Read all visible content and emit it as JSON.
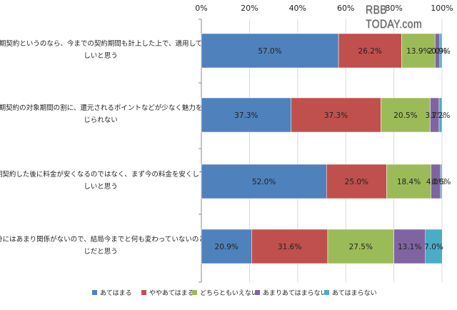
{
  "watermark": "RBB TODAY.com",
  "colors": {
    "series": [
      "#4f81bd",
      "#c0504d",
      "#9bbb59",
      "#8064a2",
      "#4bacc6"
    ],
    "grid": "#d9d9d9",
    "axis": "#888888",
    "text": "#222222"
  },
  "chart_data": {
    "type": "bar",
    "orientation": "horizontal",
    "stacked": true,
    "percent": true,
    "xlim": [
      0,
      100
    ],
    "x_ticks": [
      "0%",
      "20%",
      "40%",
      "60%",
      "80%",
      "100%"
    ],
    "legend_position": "bottom",
    "categories": [
      [
        "長期契約というのなら、今までの契約期間も計上した上で、適用してほ",
        "しいと思う"
      ],
      [
        "長期契約の対象期間の割に、還元されるポイントなどが少なく魅力を感",
        "じられない"
      ],
      [
        "長期契約した後に料金が安くなるのではなく、まず今の料金を安くしてほ",
        "しいと思う"
      ],
      [
        "自分にはあまり関係がないので、結局今までと何も変わっていないのと同",
        "じだと思う"
      ]
    ],
    "series": [
      {
        "name": "あてはまる",
        "values": [
          57.0,
          37.3,
          52.0,
          20.9
        ],
        "labels": [
          "57.0%",
          "37.3%",
          "52.0%",
          "20.9%"
        ]
      },
      {
        "name": "ややあてはまる",
        "values": [
          26.2,
          37.3,
          25.0,
          31.6
        ],
        "labels": [
          "26.2%",
          "37.3%",
          "25.0%",
          "31.6%"
        ]
      },
      {
        "name": "どちらともいえない",
        "values": [
          13.9,
          20.5,
          18.4,
          27.5
        ],
        "labels": [
          "13.9%",
          "20.5%",
          "18.4%",
          "27.5%"
        ]
      },
      {
        "name": "あまりあてはまらない",
        "values": [
          2.0,
          3.7,
          4.0,
          13.1
        ],
        "labels": [
          "2.0%",
          "3.7%",
          "4.0%",
          "13.1%"
        ]
      },
      {
        "name": "あてはまらない",
        "values": [
          0.9,
          1.2,
          0.6,
          7.0
        ],
        "labels": [
          "0.9%",
          "1.2%",
          "0.6%",
          "7.0%"
        ]
      }
    ]
  }
}
